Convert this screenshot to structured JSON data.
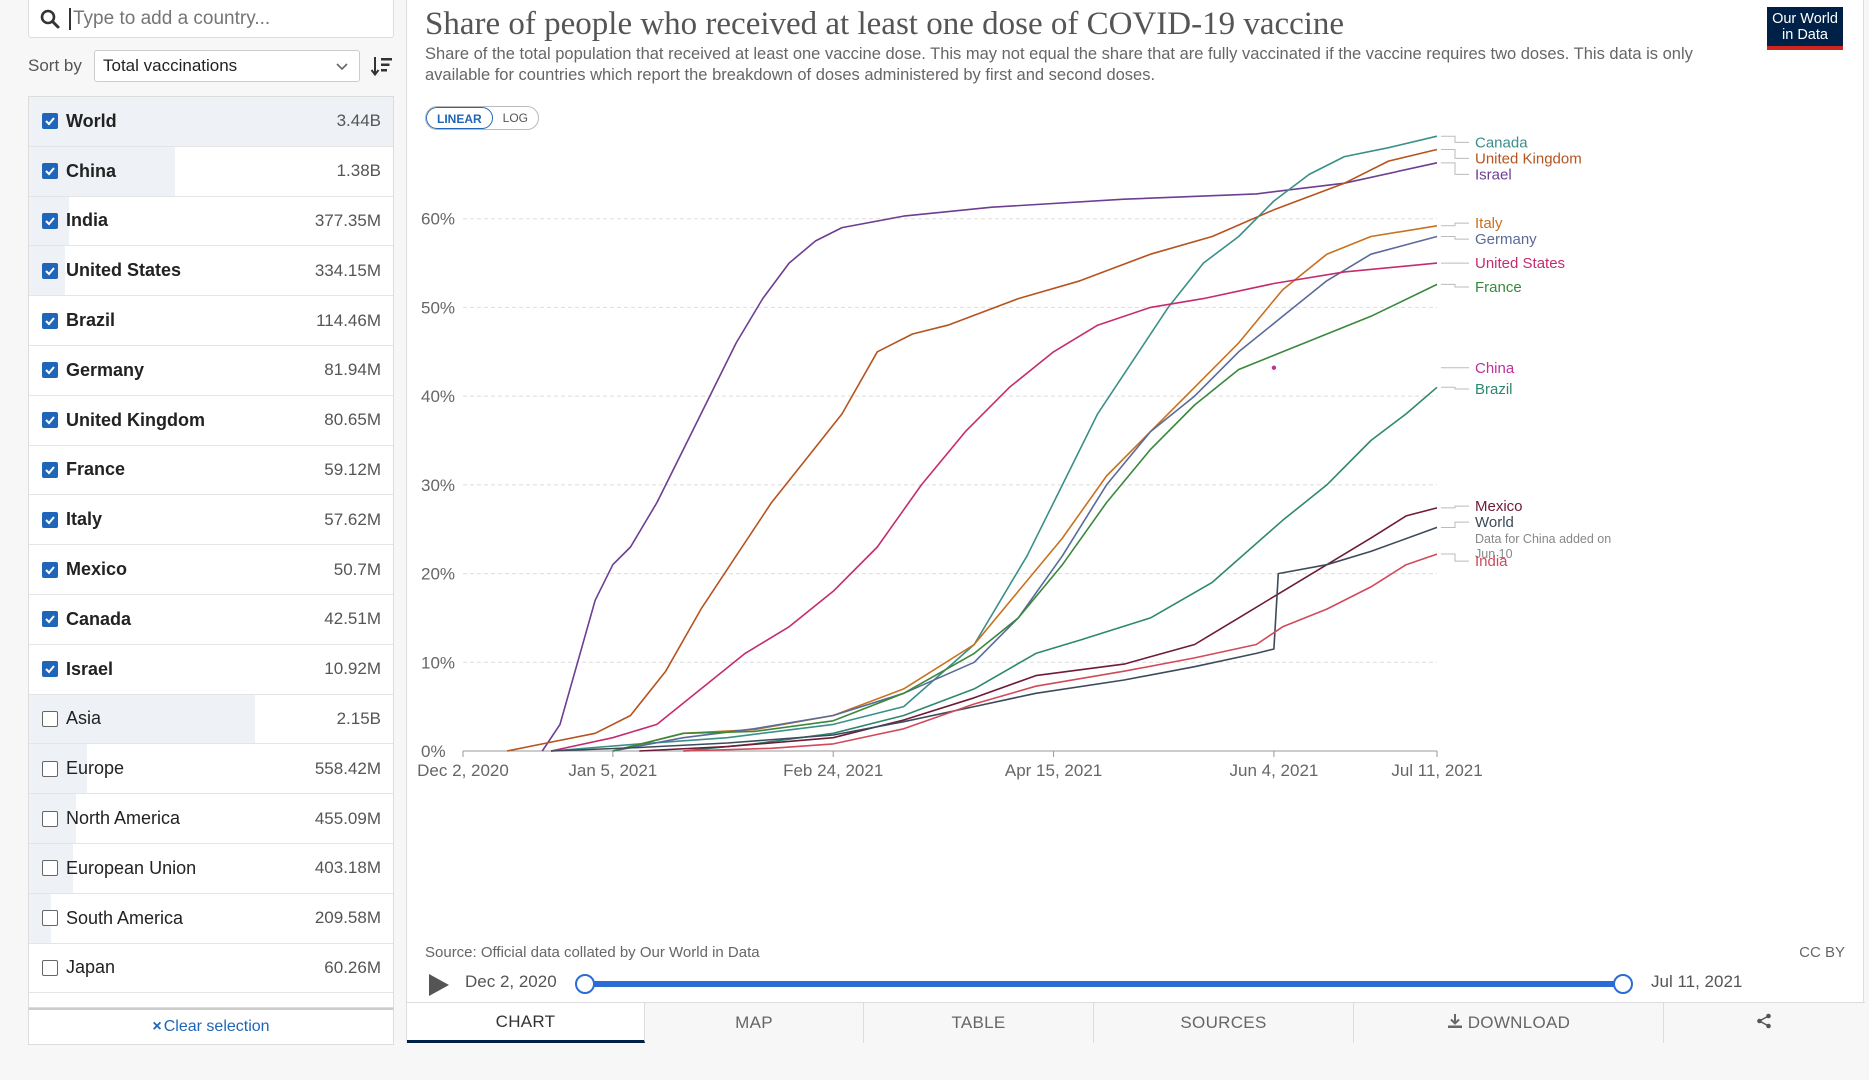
{
  "search": {
    "placeholder": "Type to add a country..."
  },
  "sort": {
    "label": "Sort by",
    "value": "Total vaccinations"
  },
  "entities": [
    {
      "name": "World",
      "value": "3.44B",
      "selected": true
    },
    {
      "name": "China",
      "value": "1.38B",
      "selected": true
    },
    {
      "name": "India",
      "value": "377.35M",
      "selected": true
    },
    {
      "name": "United States",
      "value": "334.15M",
      "selected": true
    },
    {
      "name": "Brazil",
      "value": "114.46M",
      "selected": true
    },
    {
      "name": "Germany",
      "value": "81.94M",
      "selected": true
    },
    {
      "name": "United Kingdom",
      "value": "80.65M",
      "selected": true
    },
    {
      "name": "France",
      "value": "59.12M",
      "selected": true
    },
    {
      "name": "Italy",
      "value": "57.62M",
      "selected": true
    },
    {
      "name": "Mexico",
      "value": "50.7M",
      "selected": true
    },
    {
      "name": "Canada",
      "value": "42.51M",
      "selected": true
    },
    {
      "name": "Israel",
      "value": "10.92M",
      "selected": true
    },
    {
      "name": "Asia",
      "value": "2.15B",
      "selected": false
    },
    {
      "name": "Europe",
      "value": "558.42M",
      "selected": false
    },
    {
      "name": "North America",
      "value": "455.09M",
      "selected": false
    },
    {
      "name": "European Union",
      "value": "403.18M",
      "selected": false
    },
    {
      "name": "South America",
      "value": "209.58M",
      "selected": false
    },
    {
      "name": "Japan",
      "value": "60.26M",
      "selected": false
    }
  ],
  "clear_label": "Clear selection",
  "clear_icon": "×",
  "logo": {
    "line1": "Our World",
    "line2": "in Data"
  },
  "scale": {
    "linear": "LINEAR",
    "log": "LOG"
  },
  "source": "Source: Official data collated by Our World in Data",
  "license": "CC BY",
  "timeline": {
    "start": "Dec 2, 2020",
    "end": "Jul 11, 2021"
  },
  "tabs": {
    "chart": "CHART",
    "map": "MAP",
    "table": "TABLE",
    "sources": "SOURCES",
    "download": "DOWNLOAD"
  },
  "colors": {
    "Canada": "#3b8f89",
    "United Kingdom": "#b5541e",
    "Israel": "#6d3e91",
    "Italy": "#c8711f",
    "Germany": "#5a6a9a",
    "United States": "#c42c6f",
    "France": "#38893b",
    "China": "#c0309a",
    "Brazil": "#2e8870",
    "Mexico": "#6e1b36",
    "World": "#3d4a5c",
    "India": "#d04a5a"
  },
  "chart_data": {
    "type": "line",
    "title": "Share of people who received at least one dose of COVID-19 vaccine",
    "subtitle": "Share of the total population that received at least one vaccine dose. This may not equal the share that are fully vaccinated if the vaccine requires two doses. This data is only available for countries which report the breakdown of doses administered by first and second doses.",
    "x_ticks": [
      "Dec 2, 2020",
      "Jan 5, 2021",
      "Feb 24, 2021",
      "Apr 15, 2021",
      "Jun 4, 2021",
      "Jul 11, 2021"
    ],
    "x_tick_days": [
      0,
      34,
      84,
      134,
      184,
      221
    ],
    "y_ticks": [
      "0%",
      "10%",
      "20%",
      "30%",
      "40%",
      "50%",
      "60%"
    ],
    "y_tick_values": [
      0,
      10,
      20,
      30,
      40,
      50,
      60
    ],
    "ylim": [
      0,
      70
    ],
    "xlim": [
      0,
      221
    ],
    "x_unit": "days since Dec 2, 2020",
    "series": [
      {
        "name": "Israel",
        "points": [
          [
            18,
            0
          ],
          [
            22,
            3
          ],
          [
            26,
            10
          ],
          [
            30,
            17
          ],
          [
            34,
            21
          ],
          [
            38,
            23
          ],
          [
            44,
            28
          ],
          [
            50,
            34
          ],
          [
            56,
            40
          ],
          [
            62,
            46
          ],
          [
            68,
            51
          ],
          [
            74,
            55
          ],
          [
            80,
            57.5
          ],
          [
            86,
            59
          ],
          [
            100,
            60.3
          ],
          [
            120,
            61.3
          ],
          [
            150,
            62.2
          ],
          [
            180,
            62.8
          ],
          [
            200,
            64
          ],
          [
            221,
            66.3
          ]
        ]
      },
      {
        "name": "United Kingdom",
        "points": [
          [
            10,
            0
          ],
          [
            20,
            1
          ],
          [
            30,
            2
          ],
          [
            38,
            4
          ],
          [
            46,
            9
          ],
          [
            54,
            16
          ],
          [
            62,
            22
          ],
          [
            70,
            28
          ],
          [
            78,
            33
          ],
          [
            86,
            38
          ],
          [
            94,
            45
          ],
          [
            102,
            47
          ],
          [
            110,
            48
          ],
          [
            126,
            51
          ],
          [
            140,
            53
          ],
          [
            156,
            56
          ],
          [
            170,
            58
          ],
          [
            184,
            61
          ],
          [
            200,
            64
          ],
          [
            210,
            66.5
          ],
          [
            221,
            67.8
          ]
        ]
      },
      {
        "name": "Canada",
        "points": [
          [
            20,
            0
          ],
          [
            40,
            0.8
          ],
          [
            60,
            1.5
          ],
          [
            84,
            3
          ],
          [
            100,
            5
          ],
          [
            116,
            12
          ],
          [
            128,
            22
          ],
          [
            136,
            30
          ],
          [
            144,
            38
          ],
          [
            152,
            44
          ],
          [
            160,
            50
          ],
          [
            168,
            55
          ],
          [
            176,
            58
          ],
          [
            184,
            62
          ],
          [
            192,
            65
          ],
          [
            200,
            67
          ],
          [
            210,
            68
          ],
          [
            221,
            69.3
          ]
        ]
      },
      {
        "name": "Italy",
        "points": [
          [
            34,
            0
          ],
          [
            50,
            2
          ],
          [
            66,
            2.4
          ],
          [
            84,
            4
          ],
          [
            100,
            7
          ],
          [
            116,
            12
          ],
          [
            126,
            18
          ],
          [
            136,
            24
          ],
          [
            146,
            31
          ],
          [
            156,
            36
          ],
          [
            166,
            41
          ],
          [
            176,
            46
          ],
          [
            186,
            52
          ],
          [
            196,
            56
          ],
          [
            206,
            58
          ],
          [
            221,
            59.2
          ]
        ]
      },
      {
        "name": "Germany",
        "points": [
          [
            34,
            0
          ],
          [
            50,
            1.5
          ],
          [
            66,
            2.5
          ],
          [
            84,
            4
          ],
          [
            100,
            6.5
          ],
          [
            116,
            10
          ],
          [
            126,
            15
          ],
          [
            136,
            22
          ],
          [
            146,
            30
          ],
          [
            156,
            36
          ],
          [
            166,
            40
          ],
          [
            176,
            45
          ],
          [
            186,
            49
          ],
          [
            196,
            53
          ],
          [
            206,
            56
          ],
          [
            221,
            58
          ]
        ]
      },
      {
        "name": "United States",
        "points": [
          [
            20,
            0
          ],
          [
            34,
            1.5
          ],
          [
            44,
            3
          ],
          [
            54,
            7
          ],
          [
            64,
            11
          ],
          [
            74,
            14
          ],
          [
            84,
            18
          ],
          [
            94,
            23
          ],
          [
            104,
            30
          ],
          [
            114,
            36
          ],
          [
            124,
            41
          ],
          [
            134,
            45
          ],
          [
            144,
            48
          ],
          [
            156,
            50
          ],
          [
            168,
            51
          ],
          [
            184,
            52.7
          ],
          [
            200,
            54
          ],
          [
            221,
            55
          ]
        ]
      },
      {
        "name": "France",
        "points": [
          [
            34,
            0
          ],
          [
            50,
            2
          ],
          [
            66,
            2.2
          ],
          [
            84,
            3.4
          ],
          [
            100,
            6.5
          ],
          [
            116,
            11
          ],
          [
            126,
            15
          ],
          [
            136,
            21
          ],
          [
            146,
            28
          ],
          [
            156,
            34
          ],
          [
            166,
            39
          ],
          [
            176,
            43
          ],
          [
            186,
            45
          ],
          [
            196,
            47
          ],
          [
            206,
            49
          ],
          [
            221,
            52.6
          ]
        ]
      },
      {
        "name": "Brazil",
        "points": [
          [
            50,
            0
          ],
          [
            66,
            0.8
          ],
          [
            84,
            2
          ],
          [
            100,
            4
          ],
          [
            116,
            7
          ],
          [
            130,
            11
          ],
          [
            140,
            12.5
          ],
          [
            156,
            15
          ],
          [
            170,
            19
          ],
          [
            186,
            26
          ],
          [
            196,
            30
          ],
          [
            206,
            35
          ],
          [
            214,
            38
          ],
          [
            221,
            41
          ]
        ]
      },
      {
        "name": "Mexico",
        "points": [
          [
            40,
            0
          ],
          [
            60,
            0.5
          ],
          [
            84,
            1.5
          ],
          [
            100,
            3.5
          ],
          [
            116,
            6
          ],
          [
            130,
            8.5
          ],
          [
            150,
            9.8
          ],
          [
            166,
            12
          ],
          [
            176,
            15
          ],
          [
            186,
            18
          ],
          [
            196,
            21
          ],
          [
            206,
            24
          ],
          [
            214,
            26.5
          ],
          [
            221,
            27.4
          ]
        ]
      },
      {
        "name": "World",
        "points": [
          [
            20,
            0
          ],
          [
            40,
            0.4
          ],
          [
            60,
            0.9
          ],
          [
            84,
            1.8
          ],
          [
            100,
            3.3
          ],
          [
            116,
            5
          ],
          [
            130,
            6.5
          ],
          [
            150,
            8
          ],
          [
            166,
            9.5
          ],
          [
            180,
            11
          ],
          [
            184,
            11.5
          ],
          [
            185,
            20
          ],
          [
            196,
            21
          ],
          [
            206,
            22.5
          ],
          [
            221,
            25.2
          ]
        ]
      },
      {
        "name": "India",
        "points": [
          [
            50,
            0
          ],
          [
            70,
            0.3
          ],
          [
            84,
            0.8
          ],
          [
            100,
            2.5
          ],
          [
            116,
            5.3
          ],
          [
            130,
            7.3
          ],
          [
            150,
            9
          ],
          [
            166,
            10.5
          ],
          [
            180,
            12
          ],
          [
            186,
            14
          ],
          [
            196,
            16
          ],
          [
            206,
            18.5
          ],
          [
            214,
            21
          ],
          [
            221,
            22.2
          ]
        ]
      }
    ],
    "labels": [
      {
        "name": "Canada",
        "text": "Canada",
        "y": 68.6
      },
      {
        "name": "United Kingdom",
        "text": "United Kingdom",
        "y": 66.8
      },
      {
        "name": "Israel",
        "text": "Israel",
        "y": 65.0
      },
      {
        "name": "Italy",
        "text": "Italy",
        "y": 59.5
      },
      {
        "name": "Germany",
        "text": "Germany",
        "y": 57.7
      },
      {
        "name": "United States",
        "text": "United States",
        "y": 55.0
      },
      {
        "name": "France",
        "text": "France",
        "y": 52.3
      },
      {
        "name": "China",
        "text": "China",
        "y": 43.2
      },
      {
        "name": "Brazil",
        "text": "Brazil",
        "y": 40.8
      },
      {
        "name": "Mexico",
        "text": "Mexico",
        "y": 27.6
      },
      {
        "name": "World",
        "text": "World",
        "y": 25.8
      }
    ],
    "world_note": [
      "Data for China added on",
      "Jun 10"
    ],
    "india_label": {
      "text": "India",
      "y": 21.4
    },
    "china_dot": {
      "x": 184,
      "y": 43.2
    }
  }
}
